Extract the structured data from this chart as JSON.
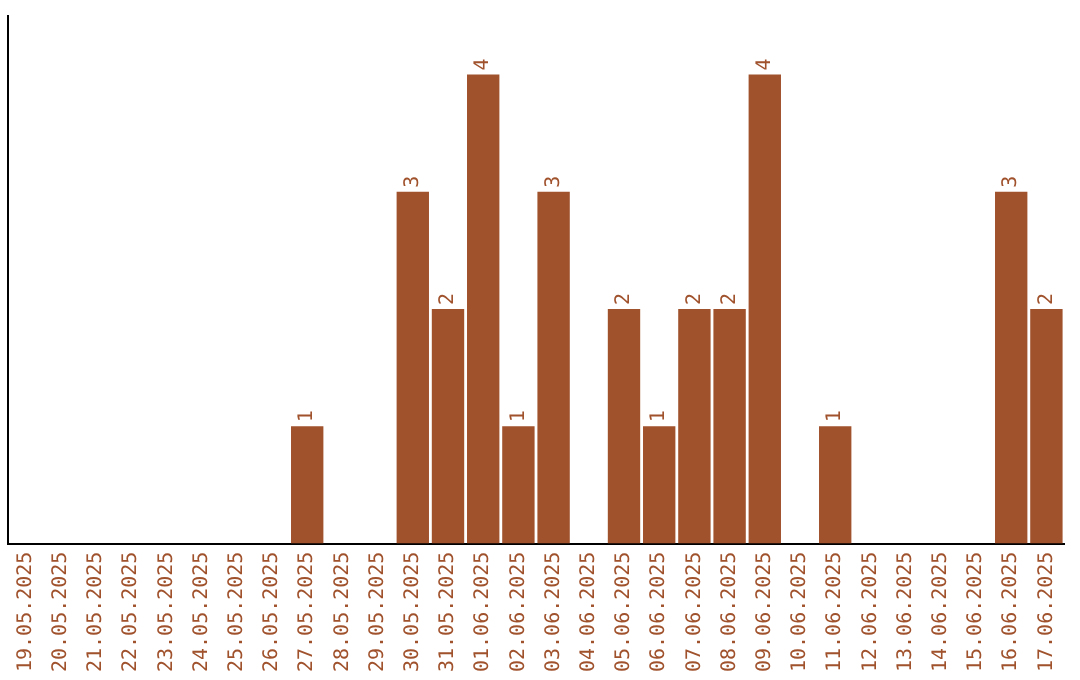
{
  "chart_data": {
    "type": "bar",
    "categories": [
      "19.05.2025",
      "20.05.2025",
      "21.05.2025",
      "22.05.2025",
      "23.05.2025",
      "24.05.2025",
      "25.05.2025",
      "26.05.2025",
      "27.05.2025",
      "28.05.2025",
      "29.05.2025",
      "30.05.2025",
      "31.05.2025",
      "01.06.2025",
      "02.06.2025",
      "03.06.2025",
      "04.06.2025",
      "05.06.2025",
      "06.06.2025",
      "07.06.2025",
      "08.06.2025",
      "09.06.2025",
      "10.06.2025",
      "11.06.2025",
      "12.06.2025",
      "13.06.2025",
      "14.06.2025",
      "15.06.2025",
      "16.06.2025",
      "17.06.2025"
    ],
    "values": [
      0,
      0,
      0,
      0,
      0,
      0,
      0,
      0,
      1,
      0,
      0,
      3,
      2,
      4,
      1,
      3,
      0,
      2,
      1,
      2,
      2,
      4,
      0,
      1,
      0,
      0,
      0,
      0,
      3,
      2
    ],
    "value_labels": [
      null,
      null,
      null,
      null,
      null,
      null,
      null,
      null,
      "1",
      null,
      null,
      "3",
      "2",
      "4",
      "1",
      "3",
      null,
      "2",
      "1",
      "2",
      "2",
      "4",
      null,
      "1",
      null,
      null,
      null,
      null,
      "3",
      "2"
    ],
    "color": "#a0522d",
    "grid": false,
    "legend": false,
    "tick_labels": "x"
  }
}
